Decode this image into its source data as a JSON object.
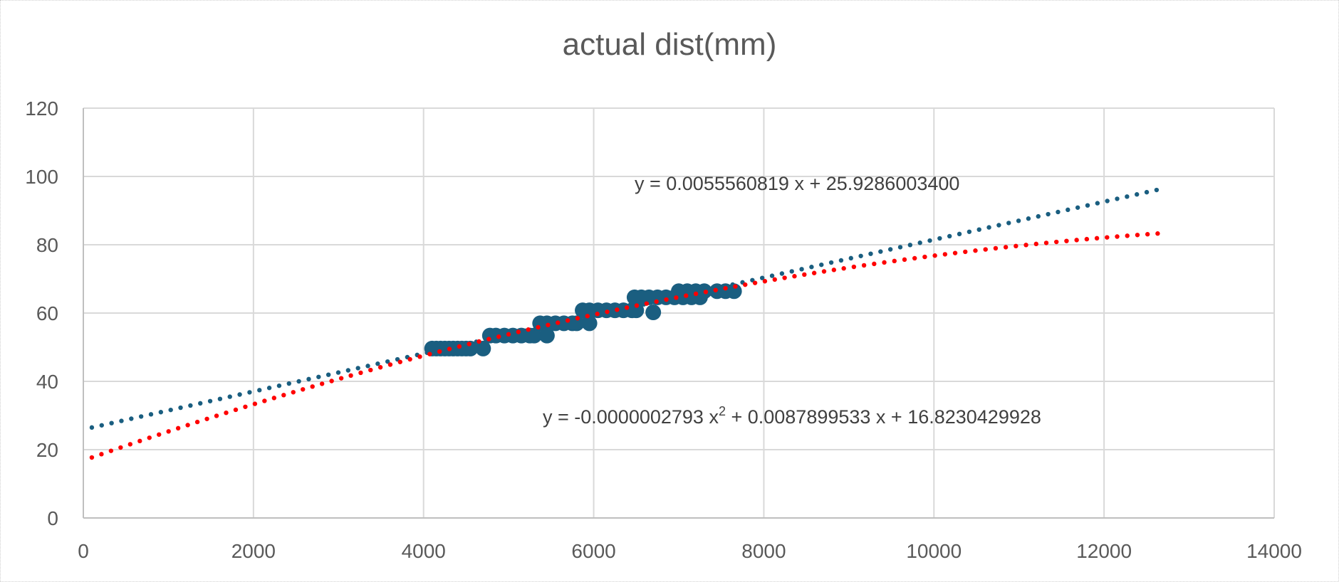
{
  "chart_data": {
    "type": "scatter",
    "title": "actual dist(mm)",
    "xlabel": "",
    "ylabel": "",
    "xlim": [
      0,
      14000
    ],
    "ylim": [
      0,
      120
    ],
    "x_ticks": [
      0,
      2000,
      4000,
      6000,
      8000,
      10000,
      12000,
      14000
    ],
    "y_ticks": [
      0,
      20,
      40,
      60,
      80,
      100,
      120
    ],
    "grid": true,
    "legend": null,
    "series": [
      {
        "name": "actual dist(mm)",
        "color": "#1a5e80",
        "points": [
          [
            4100,
            49.6
          ],
          [
            4150,
            49.6
          ],
          [
            4200,
            49.6
          ],
          [
            4250,
            49.6
          ],
          [
            4300,
            49.6
          ],
          [
            4350,
            49.6
          ],
          [
            4400,
            49.6
          ],
          [
            4450,
            49.6
          ],
          [
            4500,
            49.6
          ],
          [
            4550,
            49.6
          ],
          [
            4700,
            49.6
          ],
          [
            4780,
            53.4
          ],
          [
            4850,
            53.4
          ],
          [
            4950,
            53.4
          ],
          [
            5050,
            53.4
          ],
          [
            5150,
            53.4
          ],
          [
            5250,
            53.4
          ],
          [
            5300,
            53.4
          ],
          [
            5450,
            53.4
          ],
          [
            5370,
            57.0
          ],
          [
            5450,
            57.0
          ],
          [
            5550,
            57.0
          ],
          [
            5650,
            57.0
          ],
          [
            5750,
            57.0
          ],
          [
            5800,
            57.0
          ],
          [
            5950,
            57.0
          ],
          [
            5870,
            60.8
          ],
          [
            5950,
            60.8
          ],
          [
            6050,
            60.8
          ],
          [
            6150,
            60.8
          ],
          [
            6250,
            60.8
          ],
          [
            6350,
            60.8
          ],
          [
            6450,
            60.8
          ],
          [
            6500,
            60.8
          ],
          [
            6700,
            60.2
          ],
          [
            6480,
            64.6
          ],
          [
            6560,
            64.6
          ],
          [
            6650,
            64.6
          ],
          [
            6750,
            64.6
          ],
          [
            6850,
            64.6
          ],
          [
            6950,
            64.6
          ],
          [
            7050,
            64.6
          ],
          [
            7150,
            64.6
          ],
          [
            7250,
            64.6
          ],
          [
            7000,
            66.4
          ],
          [
            7100,
            66.4
          ],
          [
            7200,
            66.4
          ],
          [
            7300,
            66.4
          ],
          [
            7450,
            66.4
          ],
          [
            7550,
            66.4
          ],
          [
            7650,
            66.4
          ]
        ]
      }
    ],
    "trendlines": [
      {
        "type": "linear",
        "color": "#1a5e80",
        "style": "dotted",
        "x_range": [
          100,
          12630
        ],
        "coefficients": {
          "a": 0.0055560819,
          "b": 25.92860034
        },
        "equation_label": "y = 0.0055560819 x + 25.9286003400"
      },
      {
        "type": "polynomial-2",
        "color": "#ff0000",
        "style": "dotted",
        "x_range": [
          100,
          12630
        ],
        "coefficients": {
          "a2": -2.793e-07,
          "a1": 0.0087899533,
          "a0": 16.8230429928
        },
        "equation_label_parts": [
          "y = -0.0000002793 x",
          "2",
          " + 0.0087899533 x + 16.8230429928"
        ]
      }
    ]
  }
}
